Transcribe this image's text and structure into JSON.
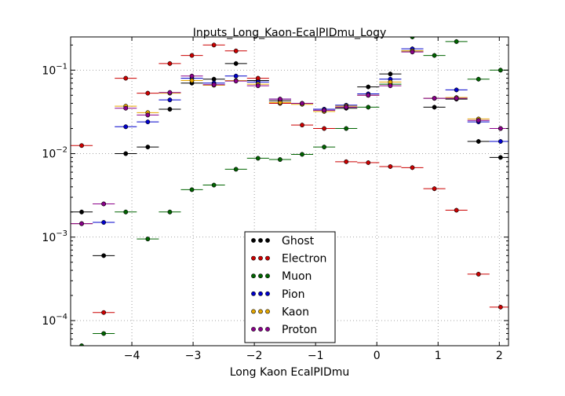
{
  "chart_data": {
    "type": "scatter",
    "title": "Inputs_Long_Kaon-EcalPIDmu_Logy",
    "xlabel": "Long Kaon EcalPIDmu",
    "ylabel": "",
    "xlim": [
      -5.0,
      2.15
    ],
    "ylim": [
      5e-05,
      0.25
    ],
    "yscale": "log",
    "grid": true,
    "legend_position": "bottom-center",
    "x_ticks": [
      -4,
      -3,
      -2,
      -1,
      0,
      1,
      2
    ],
    "x_tick_labels": [
      "−4",
      "−3",
      "−2",
      "−1",
      "0",
      "1",
      "2"
    ],
    "y_ticks": [
      0.0001,
      0.001,
      0.01,
      0.1
    ],
    "y_tick_labels": [
      {
        "base": "10",
        "exp": "-4"
      },
      {
        "base": "10",
        "exp": "-3"
      },
      {
        "base": "10",
        "exp": "-2"
      },
      {
        "base": "10",
        "exp": "-1"
      }
    ],
    "bin_half_width": 0.18,
    "series": [
      {
        "name": "Ghost",
        "color": "#000000",
        "points": [
          [
            -4.82,
            0.002
          ],
          [
            -4.46,
            0.0006
          ],
          [
            -4.1,
            0.01
          ],
          [
            -3.74,
            0.012
          ],
          [
            -3.38,
            0.034
          ],
          [
            -3.02,
            0.07
          ],
          [
            -2.66,
            0.078
          ],
          [
            -2.3,
            0.12
          ],
          [
            -1.94,
            0.075
          ],
          [
            -1.58,
            0.043
          ],
          [
            -1.22,
            0.04
          ],
          [
            -0.86,
            0.034
          ],
          [
            -0.5,
            0.035
          ],
          [
            -0.14,
            0.063
          ],
          [
            0.22,
            0.09
          ],
          [
            0.58,
            0.17
          ],
          [
            0.94,
            0.036
          ],
          [
            1.3,
            0.045
          ],
          [
            1.66,
            0.014
          ],
          [
            2.02,
            0.009
          ]
        ]
      },
      {
        "name": "Electron",
        "color": "#cc0000",
        "points": [
          [
            -4.82,
            0.0125
          ],
          [
            -4.46,
            0.000125
          ],
          [
            -4.1,
            0.08
          ],
          [
            -3.74,
            0.053
          ],
          [
            -3.38,
            0.12
          ],
          [
            -3.02,
            0.15
          ],
          [
            -2.66,
            0.2
          ],
          [
            -2.3,
            0.17
          ],
          [
            -1.94,
            0.08
          ],
          [
            -1.58,
            0.04
          ],
          [
            -1.22,
            0.022
          ],
          [
            -0.86,
            0.02
          ],
          [
            -0.5,
            0.008
          ],
          [
            -0.14,
            0.0078
          ],
          [
            0.22,
            0.007
          ],
          [
            0.58,
            0.0068
          ],
          [
            0.94,
            0.0038
          ],
          [
            1.3,
            0.0021
          ],
          [
            1.66,
            0.00036
          ],
          [
            2.02,
            0.000145
          ]
        ]
      },
      {
        "name": "Muon",
        "color": "#006400",
        "points": [
          [
            -4.82,
            5e-05
          ],
          [
            -4.46,
            7e-05
          ],
          [
            -4.1,
            0.002
          ],
          [
            -3.74,
            0.00095
          ],
          [
            -3.38,
            0.002
          ],
          [
            -3.02,
            0.0037
          ],
          [
            -2.66,
            0.0042
          ],
          [
            -2.3,
            0.0065
          ],
          [
            -1.94,
            0.0088
          ],
          [
            -1.58,
            0.0085
          ],
          [
            -1.22,
            0.0098
          ],
          [
            -0.86,
            0.012
          ],
          [
            -0.5,
            0.02
          ],
          [
            -0.14,
            0.036
          ],
          [
            0.22,
            0.068
          ],
          [
            0.58,
            0.25
          ],
          [
            0.94,
            0.15
          ],
          [
            1.3,
            0.22
          ],
          [
            1.66,
            0.078
          ],
          [
            2.02,
            0.1
          ]
        ]
      },
      {
        "name": "Pion",
        "color": "#0000cc",
        "points": [
          [
            -4.82,
            0.00145
          ],
          [
            -4.46,
            0.0015
          ],
          [
            -4.1,
            0.021
          ],
          [
            -3.74,
            0.024
          ],
          [
            -3.38,
            0.044
          ],
          [
            -3.02,
            0.08
          ],
          [
            -2.66,
            0.07
          ],
          [
            -2.3,
            0.085
          ],
          [
            -1.94,
            0.072
          ],
          [
            -1.58,
            0.045
          ],
          [
            -1.22,
            0.04
          ],
          [
            -0.86,
            0.034
          ],
          [
            -0.5,
            0.038
          ],
          [
            -0.14,
            0.052
          ],
          [
            0.22,
            0.078
          ],
          [
            0.58,
            0.18
          ],
          [
            0.94,
            0.046
          ],
          [
            1.3,
            0.058
          ],
          [
            1.66,
            0.024
          ],
          [
            2.02,
            0.014
          ]
        ]
      },
      {
        "name": "Kaon",
        "color": "#e6a800",
        "points": [
          [
            -4.82,
            0.00145
          ],
          [
            -4.46,
            0.0025
          ],
          [
            -4.1,
            0.037
          ],
          [
            -3.74,
            0.031
          ],
          [
            -3.38,
            0.053
          ],
          [
            -3.02,
            0.075
          ],
          [
            -2.66,
            0.066
          ],
          [
            -2.3,
            0.075
          ],
          [
            -1.94,
            0.068
          ],
          [
            -1.58,
            0.041
          ],
          [
            -1.22,
            0.039
          ],
          [
            -0.86,
            0.032
          ],
          [
            -0.5,
            0.037
          ],
          [
            -0.14,
            0.05
          ],
          [
            0.22,
            0.072
          ],
          [
            0.58,
            0.17
          ],
          [
            0.94,
            0.046
          ],
          [
            1.3,
            0.047
          ],
          [
            1.66,
            0.026
          ],
          [
            2.02,
            0.02
          ]
        ]
      },
      {
        "name": "Proton",
        "color": "#8b008b",
        "points": [
          [
            -4.82,
            0.00145
          ],
          [
            -4.46,
            0.0025
          ],
          [
            -4.1,
            0.035
          ],
          [
            -3.74,
            0.029
          ],
          [
            -3.38,
            0.054
          ],
          [
            -3.02,
            0.085
          ],
          [
            -2.66,
            0.067
          ],
          [
            -2.3,
            0.074
          ],
          [
            -1.94,
            0.065
          ],
          [
            -1.58,
            0.045
          ],
          [
            -1.22,
            0.04
          ],
          [
            -0.86,
            0.033
          ],
          [
            -0.5,
            0.036
          ],
          [
            -0.14,
            0.05
          ],
          [
            0.22,
            0.065
          ],
          [
            0.58,
            0.165
          ],
          [
            0.94,
            0.046
          ],
          [
            1.3,
            0.046
          ],
          [
            1.66,
            0.025
          ],
          [
            2.02,
            0.02
          ]
        ]
      }
    ]
  }
}
